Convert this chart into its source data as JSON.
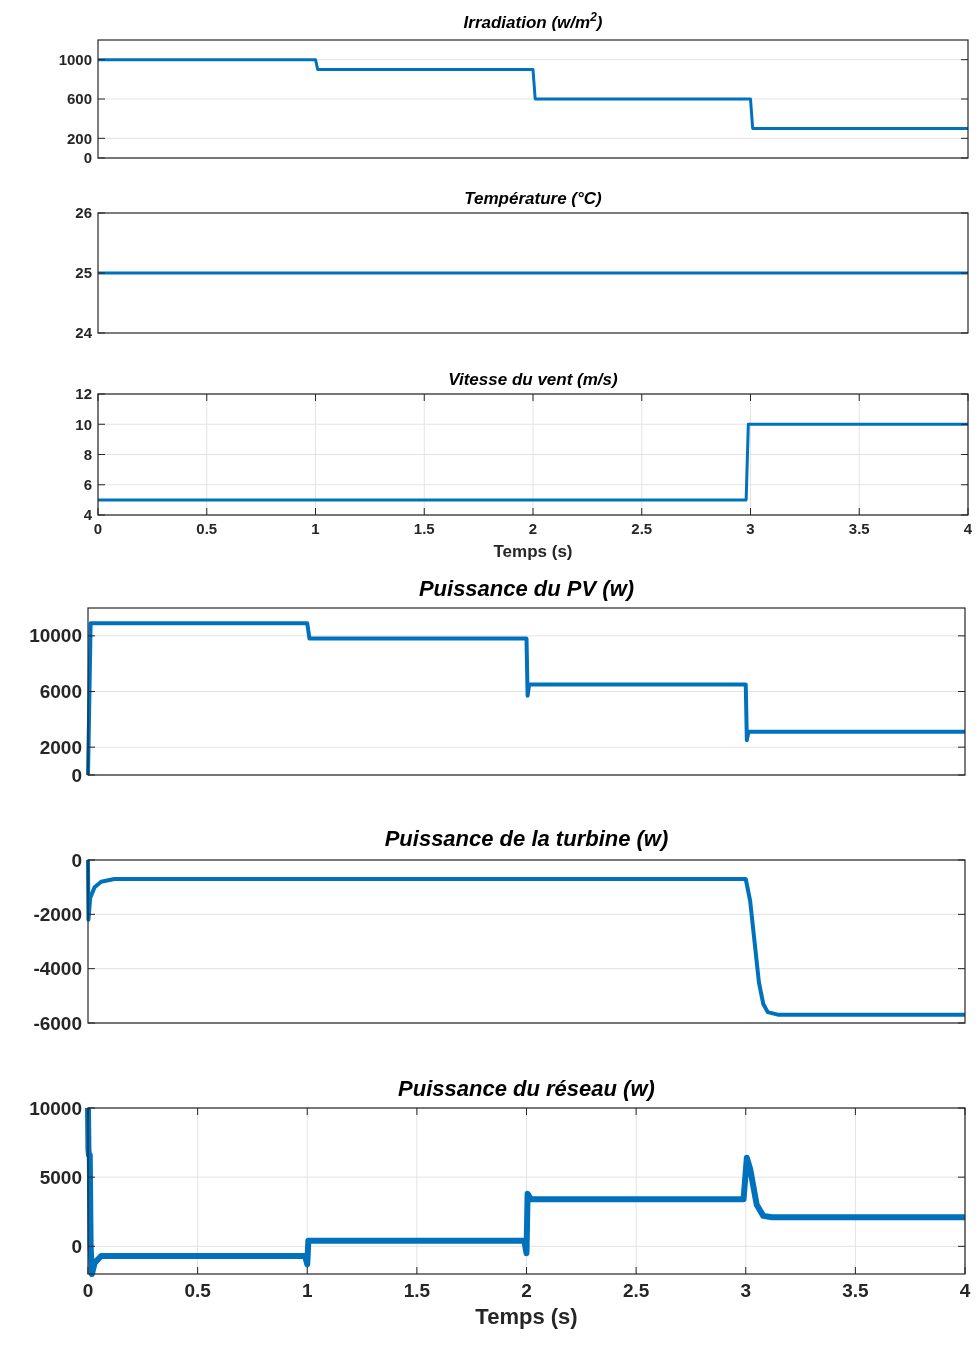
{
  "chart_data": [
    {
      "type": "line",
      "title": "Irradiation (w/m$^{2}$)",
      "xlim": [
        0,
        4
      ],
      "ylim": [
        0,
        1200
      ],
      "yticks": [
        0,
        200,
        600,
        1000
      ],
      "grid": "y",
      "tick_labels": "y",
      "series": [
        {
          "color": "#0072bd",
          "x": [
            0,
            1.0,
            1.01,
            2.0,
            2.01,
            3.0,
            3.01,
            4
          ],
          "values": [
            1000,
            1000,
            900,
            900,
            600,
            600,
            300,
            300
          ]
        }
      ]
    },
    {
      "type": "line",
      "title": "Température (°C)",
      "xlim": [
        0,
        4
      ],
      "ylim": [
        24,
        26
      ],
      "yticks": [
        24,
        25,
        26
      ],
      "tick_labels": "y",
      "series": [
        {
          "color": "#0072bd",
          "x": [
            0,
            4
          ],
          "values": [
            25,
            25
          ]
        }
      ]
    },
    {
      "type": "line",
      "title": "Vitesse du vent (m/s)",
      "xlabel": "Temps (s)",
      "xlim": [
        0,
        4
      ],
      "xticks": [
        0,
        0.5,
        1,
        1.5,
        2,
        2.5,
        3,
        3.5,
        4
      ],
      "ylim": [
        4,
        12
      ],
      "yticks": [
        4,
        6,
        8,
        10,
        12
      ],
      "grid": true,
      "series": [
        {
          "color": "#0072bd",
          "x": [
            0,
            2.98,
            2.99,
            4
          ],
          "values": [
            5,
            5,
            10,
            10
          ]
        }
      ]
    },
    {
      "type": "line",
      "title": "Puissance du PV  (w)",
      "xlim": [
        0,
        4
      ],
      "ylim": [
        0,
        12000
      ],
      "yticks": [
        0,
        2000,
        6000,
        10000
      ],
      "grid": "y",
      "tick_labels": "y",
      "series": [
        {
          "color": "#0072bd",
          "x": [
            0,
            0.005,
            0.012,
            0.02,
            1.0,
            1.01,
            2.0,
            2.005,
            2.012,
            3.0,
            3.005,
            3.012,
            4
          ],
          "values": [
            0,
            4400,
            10900,
            10900,
            10900,
            9800,
            9800,
            5700,
            6500,
            6500,
            2500,
            3100,
            3100
          ]
        }
      ]
    },
    {
      "type": "line",
      "title": "Puissance de la turbine (w)",
      "xlim": [
        0,
        4
      ],
      "ylim": [
        -6000,
        0
      ],
      "yticks": [
        -6000,
        -4000,
        -2000,
        0
      ],
      "grid": "y",
      "tick_labels": "y",
      "series": [
        {
          "color": "#0072bd",
          "x": [
            0,
            0.002,
            0.01,
            0.03,
            0.06,
            0.12,
            3.0,
            3.02,
            3.04,
            3.06,
            3.08,
            3.1,
            3.15,
            4
          ],
          "values": [
            0,
            -2200,
            -1400,
            -1000,
            -800,
            -700,
            -700,
            -1500,
            -3000,
            -4500,
            -5300,
            -5600,
            -5700,
            -5700
          ]
        }
      ]
    },
    {
      "type": "line",
      "title": "Puissance du réseau (w)",
      "xlabel": "Temps (s)",
      "xlim": [
        0,
        4
      ],
      "xticks": [
        0,
        0.5,
        1,
        1.5,
        2,
        2.5,
        3,
        3.5,
        4
      ],
      "ylim": [
        -2000,
        10000
      ],
      "yticks": [
        0,
        5000,
        10000
      ],
      "grid": true,
      "series": [
        {
          "color": "#0072bd",
          "x": [
            0,
            0.002,
            0.004,
            0.008,
            0.012,
            0.018,
            0.03,
            0.06,
            0.99,
            1.0,
            1.005,
            1.02,
            1.99,
            2.0,
            2.005,
            2.02,
            2.99,
            3.005,
            3.02,
            3.05,
            3.08,
            3.12,
            4
          ],
          "values": [
            10000,
            7000,
            6600,
            6600,
            0,
            -2000,
            -1200,
            -700,
            -700,
            -1300,
            400,
            400,
            400,
            -500,
            3800,
            3400,
            3400,
            6400,
            5600,
            3000,
            2200,
            2100,
            2100
          ]
        }
      ]
    }
  ]
}
